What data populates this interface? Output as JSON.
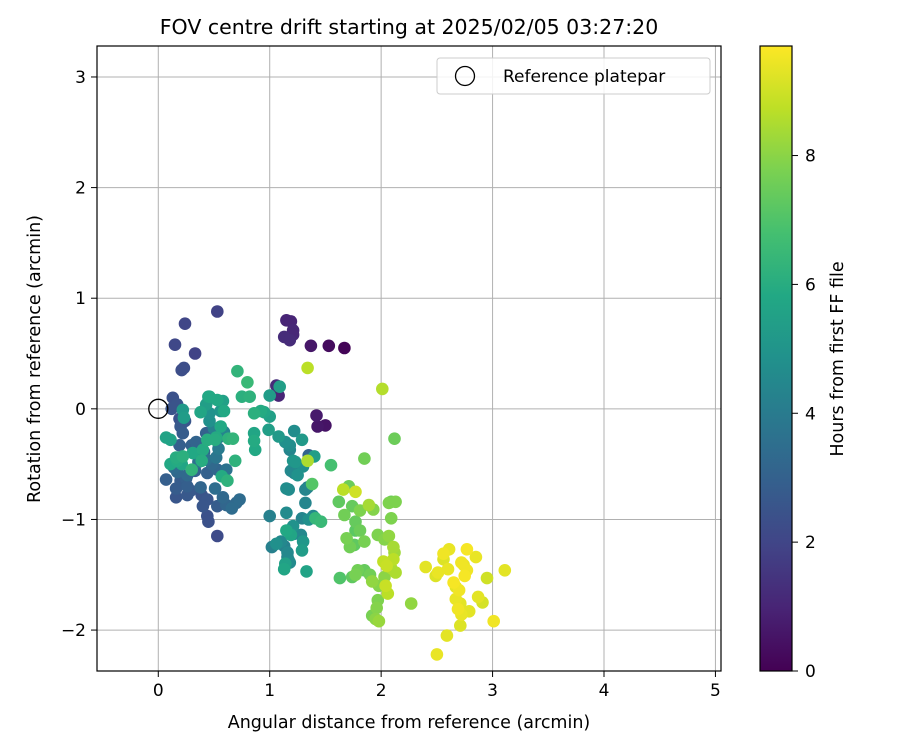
{
  "chart_data": {
    "type": "scatter",
    "title": "FOV centre drift starting at 2025/02/05 03:27:20",
    "xlabel": "Angular distance from reference (arcmin)",
    "ylabel": "Rotation from reference (arcmin)",
    "xlim": [
      -0.55,
      5.05
    ],
    "ylim": [
      -2.37,
      3.28
    ],
    "xticks": [
      0,
      1,
      2,
      3,
      4,
      5
    ],
    "yticks": [
      -2,
      -1,
      0,
      1,
      2,
      3
    ],
    "grid": true,
    "legend": {
      "placement": "upper right",
      "entries": [
        "Reference platepar"
      ]
    },
    "reference_point": {
      "x": 0,
      "y": 0
    },
    "colorbar": {
      "label": "Hours from first FF file",
      "colormap": "viridis",
      "range": [
        0,
        9.7
      ],
      "ticks": [
        0,
        2,
        4,
        6,
        8
      ]
    },
    "points": [
      [
        1.67,
        0.55,
        0.1
      ],
      [
        1.53,
        0.57,
        0.3
      ],
      [
        1.37,
        0.57,
        0.6
      ],
      [
        1.15,
        0.8,
        1.0
      ],
      [
        1.19,
        0.79,
        1.0
      ],
      [
        1.21,
        0.71,
        1.1
      ],
      [
        1.21,
        0.67,
        1.1
      ],
      [
        1.13,
        0.65,
        1.2
      ],
      [
        1.18,
        0.62,
        1.2
      ],
      [
        1.5,
        -0.15,
        0.5
      ],
      [
        1.43,
        -0.16,
        0.6
      ],
      [
        1.42,
        -0.06,
        0.7
      ],
      [
        1.08,
        0.12,
        1.0
      ],
      [
        1.06,
        0.21,
        1.2
      ],
      [
        0.53,
        0.88,
        1.9
      ],
      [
        0.24,
        0.77,
        2.0
      ],
      [
        0.33,
        0.5,
        1.9
      ],
      [
        0.15,
        0.58,
        2.1
      ],
      [
        0.23,
        0.37,
        2.3
      ],
      [
        0.21,
        0.35,
        2.3
      ],
      [
        1.35,
        -0.42,
        3.1
      ],
      [
        0.13,
        0.1,
        2.4
      ],
      [
        0.17,
        0.04,
        2.5
      ],
      [
        0.12,
        0.0,
        2.5
      ],
      [
        0.19,
        -0.09,
        2.4
      ],
      [
        0.24,
        -0.11,
        2.6
      ],
      [
        0.2,
        -0.16,
        2.7
      ],
      [
        0.22,
        -0.22,
        2.8
      ],
      [
        0.19,
        -0.33,
        2.9
      ],
      [
        0.3,
        -0.33,
        3.0
      ],
      [
        0.34,
        -0.3,
        3.1
      ],
      [
        0.43,
        -0.22,
        3.0
      ],
      [
        0.41,
        -0.39,
        3.2
      ],
      [
        0.48,
        -0.5,
        3.3
      ],
      [
        0.53,
        -0.55,
        3.2
      ],
      [
        0.44,
        -0.58,
        3.0
      ],
      [
        0.33,
        -0.56,
        3.0
      ],
      [
        0.25,
        -0.63,
        2.9
      ],
      [
        0.2,
        -0.65,
        2.8
      ],
      [
        0.07,
        -0.64,
        2.9
      ],
      [
        0.16,
        -0.72,
        2.8
      ],
      [
        0.26,
        -0.7,
        2.9
      ],
      [
        0.29,
        -0.74,
        2.7
      ],
      [
        0.16,
        -0.8,
        2.6
      ],
      [
        0.26,
        -0.78,
        2.7
      ],
      [
        0.39,
        -0.78,
        2.5
      ],
      [
        0.44,
        -0.82,
        2.6
      ],
      [
        0.4,
        -0.88,
        2.6
      ],
      [
        0.44,
        -0.97,
        2.4
      ],
      [
        0.45,
        -1.02,
        2.4
      ],
      [
        0.53,
        -1.15,
        2.2
      ],
      [
        0.53,
        -0.88,
        2.8
      ],
      [
        0.61,
        -0.87,
        3.2
      ],
      [
        0.66,
        -0.9,
        3.4
      ],
      [
        0.7,
        -0.85,
        3.3
      ],
      [
        0.73,
        -0.82,
        3.4
      ],
      [
        0.58,
        -0.8,
        3.3
      ],
      [
        0.38,
        -0.71,
        3.2
      ],
      [
        0.17,
        -0.57,
        3.3
      ],
      [
        0.14,
        -0.53,
        3.4
      ],
      [
        0.26,
        -0.6,
        3.3
      ],
      [
        0.51,
        -0.72,
        3.5
      ],
      [
        0.43,
        -0.46,
        3.6
      ],
      [
        0.52,
        -0.44,
        3.8
      ],
      [
        0.36,
        -0.48,
        3.6
      ],
      [
        0.61,
        -0.55,
        3.7
      ],
      [
        0.44,
        -0.28,
        4.1
      ],
      [
        0.54,
        -0.36,
        4.0
      ],
      [
        0.54,
        -0.26,
        4.3
      ],
      [
        0.5,
        -0.18,
        4.2
      ],
      [
        0.59,
        -0.21,
        4.4
      ],
      [
        0.46,
        -0.11,
        4.8
      ],
      [
        0.46,
        -0.04,
        4.9
      ],
      [
        0.56,
        -0.02,
        5.0
      ],
      [
        0.43,
        0.04,
        5.4
      ],
      [
        0.45,
        0.11,
        5.7
      ],
      [
        0.53,
        0.08,
        5.8
      ],
      [
        0.52,
        -0.26,
        5.9
      ],
      [
        0.63,
        -0.27,
        6.2
      ],
      [
        0.67,
        -0.27,
        6.3
      ],
      [
        0.62,
        -0.65,
        6.2
      ],
      [
        0.69,
        -0.47,
        6.2
      ],
      [
        0.57,
        -0.61,
        5.9
      ],
      [
        0.39,
        -0.47,
        6.0
      ],
      [
        0.31,
        -0.4,
        5.8
      ],
      [
        0.4,
        -0.37,
        5.9
      ],
      [
        0.44,
        -0.28,
        6.0
      ],
      [
        0.51,
        -0.28,
        6.0
      ],
      [
        0.56,
        -0.16,
        5.8
      ],
      [
        0.59,
        -0.02,
        5.8
      ],
      [
        0.58,
        0.07,
        5.5
      ],
      [
        0.46,
        0.11,
        5.8
      ],
      [
        0.38,
        -0.03,
        5.7
      ],
      [
        0.22,
        -0.01,
        5.2
      ],
      [
        0.23,
        -0.08,
        5.3
      ],
      [
        0.07,
        -0.26,
        5.6
      ],
      [
        0.11,
        -0.28,
        5.6
      ],
      [
        0.11,
        -0.5,
        5.8
      ],
      [
        0.17,
        -0.47,
        5.9
      ],
      [
        0.21,
        -0.5,
        5.7
      ],
      [
        0.16,
        -0.44,
        6.0
      ],
      [
        0.22,
        -0.43,
        6.1
      ],
      [
        0.3,
        -0.55,
        6.3
      ],
      [
        0.71,
        0.34,
        6.3
      ],
      [
        0.8,
        0.24,
        6.5
      ],
      [
        0.75,
        0.11,
        6.1
      ],
      [
        0.82,
        0.11,
        6.2
      ],
      [
        0.86,
        -0.04,
        6.1
      ],
      [
        0.92,
        -0.02,
        5.9
      ],
      [
        0.95,
        -0.03,
        5.7
      ],
      [
        1.0,
        -0.07,
        5.5
      ],
      [
        1.0,
        0.12,
        5.3
      ],
      [
        1.09,
        0.2,
        5.4
      ],
      [
        0.87,
        -0.37,
        5.8
      ],
      [
        0.86,
        -0.29,
        5.9
      ],
      [
        0.86,
        -0.22,
        5.7
      ],
      [
        0.99,
        -0.19,
        5.4
      ],
      [
        1.08,
        -0.25,
        5.2
      ],
      [
        1.14,
        -0.3,
        4.8
      ],
      [
        1.18,
        -0.33,
        4.7
      ],
      [
        1.19,
        -0.56,
        4.5
      ],
      [
        1.22,
        -0.58,
        4.3
      ],
      [
        1.18,
        -0.37,
        4.4
      ],
      [
        1.22,
        -0.2,
        4.7
      ],
      [
        1.21,
        -0.47,
        5.0
      ],
      [
        1.23,
        -0.48,
        5.1
      ],
      [
        1.29,
        -0.28,
        5.2
      ],
      [
        1.4,
        -0.43,
        5.4
      ],
      [
        1.3,
        -0.52,
        4.8
      ],
      [
        1.25,
        -0.6,
        4.9
      ],
      [
        1.15,
        -0.72,
        4.7
      ],
      [
        1.17,
        -0.73,
        4.6
      ],
      [
        1.15,
        -0.94,
        4.6
      ],
      [
        1.32,
        -0.73,
        4.4
      ],
      [
        1.32,
        -0.85,
        4.4
      ],
      [
        1.34,
        -0.71,
        4.2
      ],
      [
        1.38,
        -0.68,
        7.1
      ],
      [
        1.39,
        -0.97,
        4.5
      ],
      [
        1.35,
        -1.0,
        4.8
      ],
      [
        1.29,
        -0.99,
        4.4
      ],
      [
        1.21,
        -1.06,
        4.9
      ],
      [
        1.22,
        -1.13,
        4.5
      ],
      [
        1.28,
        -1.14,
        4.5
      ],
      [
        1.3,
        -1.2,
        5.1
      ],
      [
        1.29,
        -1.28,
        5.3
      ],
      [
        1.1,
        -1.2,
        4.5
      ],
      [
        1.13,
        -1.24,
        4.2
      ],
      [
        1.0,
        -0.97,
        4.2
      ],
      [
        1.02,
        -1.25,
        4.2
      ],
      [
        1.06,
        -1.22,
        4.8
      ],
      [
        1.16,
        -1.3,
        4.5
      ],
      [
        1.16,
        -1.34,
        4.4
      ],
      [
        1.17,
        -1.37,
        4.4
      ],
      [
        1.18,
        -1.39,
        4.6
      ],
      [
        1.14,
        -1.4,
        5.5
      ],
      [
        1.13,
        -1.45,
        5.7
      ],
      [
        1.33,
        -1.47,
        5.6
      ],
      [
        1.15,
        -1.1,
        5.8
      ],
      [
        1.19,
        -1.14,
        5.7
      ],
      [
        1.41,
        -0.99,
        6.4
      ],
      [
        1.46,
        -1.02,
        6.5
      ],
      [
        1.55,
        -0.51,
        6.8
      ],
      [
        1.62,
        -0.84,
        7.3
      ],
      [
        1.67,
        -0.96,
        7.6
      ],
      [
        1.71,
        -0.7,
        7.5
      ],
      [
        1.74,
        -0.88,
        7.4
      ],
      [
        1.77,
        -1.02,
        7.4
      ],
      [
        1.77,
        -1.1,
        7.2
      ],
      [
        1.76,
        -1.23,
        7.3
      ],
      [
        1.72,
        -1.25,
        7.6
      ],
      [
        1.69,
        -1.17,
        7.7
      ],
      [
        1.63,
        -1.53,
        7.0
      ],
      [
        1.74,
        -1.52,
        7.3
      ],
      [
        1.77,
        -1.5,
        7.7
      ],
      [
        1.79,
        -1.46,
        7.6
      ],
      [
        1.85,
        -1.46,
        7.4
      ],
      [
        1.9,
        -1.5,
        7.6
      ],
      [
        1.92,
        -1.56,
        8.1
      ],
      [
        1.98,
        -1.6,
        7.9
      ],
      [
        2.03,
        -1.52,
        8.0
      ],
      [
        1.97,
        -1.73,
        7.8
      ],
      [
        1.96,
        -1.8,
        7.9
      ],
      [
        1.92,
        -1.87,
        7.7
      ],
      [
        1.95,
        -1.9,
        8.0
      ],
      [
        1.98,
        -1.92,
        8.2
      ],
      [
        1.81,
        -1.1,
        7.5
      ],
      [
        1.85,
        -1.2,
        7.7
      ],
      [
        1.85,
        -0.45,
        7.6
      ],
      [
        1.97,
        -1.14,
        7.8
      ],
      [
        2.03,
        -1.18,
        7.9
      ],
      [
        2.07,
        -1.15,
        8.1
      ],
      [
        2.11,
        -1.25,
        8.4
      ],
      [
        2.12,
        -1.3,
        8.3
      ],
      [
        2.11,
        -1.36,
        8.7
      ],
      [
        2.09,
        -1.44,
        8.5
      ],
      [
        2.13,
        -1.48,
        8.5
      ],
      [
        2.02,
        -1.38,
        8.8
      ],
      [
        2.05,
        -1.42,
        8.9
      ],
      [
        2.04,
        -1.6,
        8.9
      ],
      [
        2.06,
        -1.67,
        8.7
      ],
      [
        2.27,
        -1.76,
        8.1
      ],
      [
        2.12,
        -0.27,
        7.5
      ],
      [
        2.01,
        0.18,
        8.6
      ],
      [
        1.34,
        0.37,
        8.7
      ],
      [
        1.34,
        -0.47,
        8.5
      ],
      [
        1.66,
        -0.73,
        8.7
      ],
      [
        1.77,
        -0.75,
        9.0
      ],
      [
        1.81,
        -0.92,
        7.8
      ],
      [
        1.89,
        -0.87,
        8.4
      ],
      [
        1.93,
        -0.91,
        7.9
      ],
      [
        2.07,
        -0.85,
        7.8
      ],
      [
        2.09,
        -0.84,
        7.5
      ],
      [
        2.13,
        -0.84,
        7.8
      ],
      [
        2.09,
        -0.99,
        7.8
      ],
      [
        2.4,
        -1.43,
        9.3
      ],
      [
        2.51,
        -1.48,
        9.4
      ],
      [
        2.49,
        -1.51,
        9.2
      ],
      [
        2.56,
        -1.31,
        9.5
      ],
      [
        2.61,
        -1.27,
        9.4
      ],
      [
        2.56,
        -1.36,
        9.2
      ],
      [
        2.6,
        -1.45,
        9.4
      ],
      [
        2.65,
        -1.57,
        9.6
      ],
      [
        2.67,
        -1.61,
        9.3
      ],
      [
        2.7,
        -1.64,
        9.5
      ],
      [
        2.67,
        -1.72,
        9.4
      ],
      [
        2.71,
        -1.76,
        9.3
      ],
      [
        2.69,
        -1.81,
        9.5
      ],
      [
        2.72,
        -1.86,
        9.4
      ],
      [
        2.71,
        -1.96,
        9.2
      ],
      [
        2.79,
        -1.83,
        9.3
      ],
      [
        2.75,
        -1.51,
        9.6
      ],
      [
        2.77,
        -1.46,
        9.5
      ],
      [
        2.74,
        -1.41,
        9.4
      ],
      [
        2.72,
        -1.39,
        9.5
      ],
      [
        2.77,
        -1.27,
        9.6
      ],
      [
        2.85,
        -1.34,
        9.4
      ],
      [
        2.87,
        -1.7,
        9.3
      ],
      [
        2.91,
        -1.75,
        9.1
      ],
      [
        2.95,
        -1.53,
        9.0
      ],
      [
        3.01,
        -1.92,
        9.5
      ],
      [
        3.11,
        -1.46,
        9.3
      ],
      [
        2.59,
        -2.05,
        9.3
      ],
      [
        2.5,
        -2.22,
        9.4
      ]
    ]
  }
}
